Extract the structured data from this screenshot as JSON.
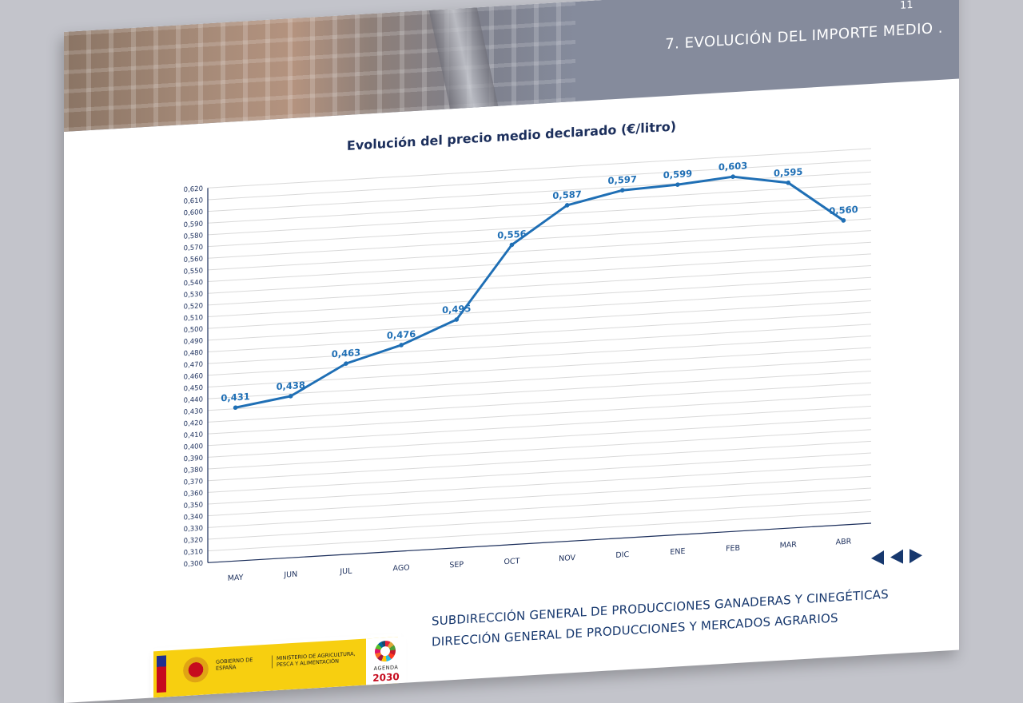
{
  "header": {
    "page_number": "11",
    "section_title": "7.  EVOLUCIÓN DEL IMPORTE MEDIO ."
  },
  "chart_data": {
    "type": "line",
    "title": "Evolución del precio medio declarado (€/litro)",
    "categories": [
      "MAY",
      "JUN",
      "JUL",
      "AGO",
      "SEP",
      "OCT",
      "NOV",
      "DIC",
      "ENE",
      "FEB",
      "MAR",
      "ABR"
    ],
    "series": [
      {
        "values": [
          0.431,
          0.438,
          0.463,
          0.476,
          0.495,
          0.556,
          0.587,
          0.597,
          0.599,
          0.603,
          0.595,
          0.56
        ],
        "labels": [
          "0,431",
          "0,438",
          "0,463",
          "0,476",
          "0,495",
          "0,556",
          "0,587",
          "0,597",
          "0,599",
          "0,603",
          "0,595",
          "0,560"
        ]
      }
    ],
    "ylim": [
      0.3,
      0.62
    ],
    "y_tick_step": 0.01,
    "y_tick_labels": [
      "0,300",
      "0,310",
      "0,320",
      "0,330",
      "0,340",
      "0,350",
      "0,360",
      "0,370",
      "0,380",
      "0,390",
      "0,400",
      "0,410",
      "0,420",
      "0,430",
      "0,440",
      "0,450",
      "0,460",
      "0,470",
      "0,480",
      "0,490",
      "0,500",
      "0,510",
      "0,520",
      "0,530",
      "0,540",
      "0,550",
      "0,560",
      "0,570",
      "0,580",
      "0,590",
      "0,600",
      "0,610",
      "0,620"
    ],
    "grid": true,
    "line_color": "#1f6fb5",
    "label_color": "#1f6fb5"
  },
  "nav": {
    "first_icon": "first-page-icon",
    "prev_icon": "previous-page-icon",
    "next_icon": "next-page-icon"
  },
  "footer": {
    "line1": "SUBDIRECCIÓN GENERAL DE PRODUCCIONES GANADERAS Y CINEGÉTICAS",
    "line2": "DIRECCIÓN GENERAL DE PRODUCCIONES Y MERCADOS AGRARIOS"
  },
  "logo": {
    "gov_text": "GOBIERNO DE ESPAÑA",
    "ministry_text": "MINISTERIO DE AGRICULTURA, PESCA Y ALIMENTACIÓN",
    "agenda_label": "AGENDA",
    "agenda_year": "2030"
  },
  "colors": {
    "banner": "#858b9c",
    "title": "#1c2f5c",
    "footer_text": "#17386e"
  }
}
